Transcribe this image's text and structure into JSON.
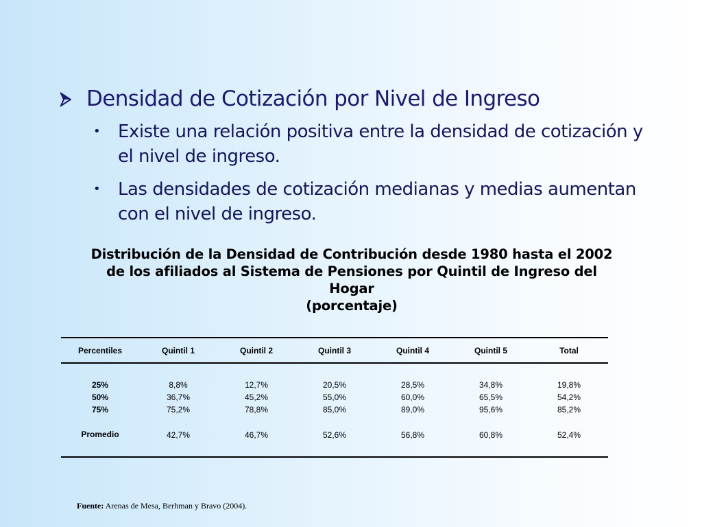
{
  "heading": "Densidad de Cotización por Nivel de Ingreso",
  "bullets": [
    {
      "line1": "Existe una relación positiva entre la densidad de cotización y",
      "line2": "el nivel de ingreso."
    },
    {
      "line1": "Las densidades de cotización medianas y medias aumentan",
      "line2": "con el nivel de ingreso."
    }
  ],
  "caption": {
    "line1": "Distribución de la Densidad de Contribución desde 1980 hasta el 2002",
    "line2": "de los afiliados al Sistema de Pensiones por Quintil de Ingreso del",
    "line3": "Hogar",
    "line4": "(porcentaje)"
  },
  "table": {
    "columns": [
      "Percentiles",
      "Quintil 1",
      "Quintil 2",
      "Quintil 3",
      "Quintil 4",
      "Quintil 5",
      "Total"
    ],
    "rows": [
      [
        "25%",
        "8,8%",
        "12,7%",
        "20,5%",
        "28,5%",
        "34,8%",
        "19,8%"
      ],
      [
        "50%",
        "36,7%",
        "45,2%",
        "55,0%",
        "60,0%",
        "65,5%",
        "54,2%"
      ],
      [
        "75%",
        "75,2%",
        "78,8%",
        "85,0%",
        "89,0%",
        "95,6%",
        "85,2%"
      ],
      [
        "Promedio",
        "42,7%",
        "46,7%",
        "52,6%",
        "56,8%",
        "60,8%",
        "52,4%"
      ]
    ]
  },
  "source": {
    "label": "Fuente:",
    "text": " Arenas de Mesa, Berhman y Bravo (2004)."
  },
  "colors": {
    "heading": "#1a1a6e",
    "text": "#15155c",
    "arrow": "#1a1a6e"
  },
  "icons": {
    "heading_bullet": "arrowhead-icon",
    "sub_bullet": "dot-icon"
  }
}
